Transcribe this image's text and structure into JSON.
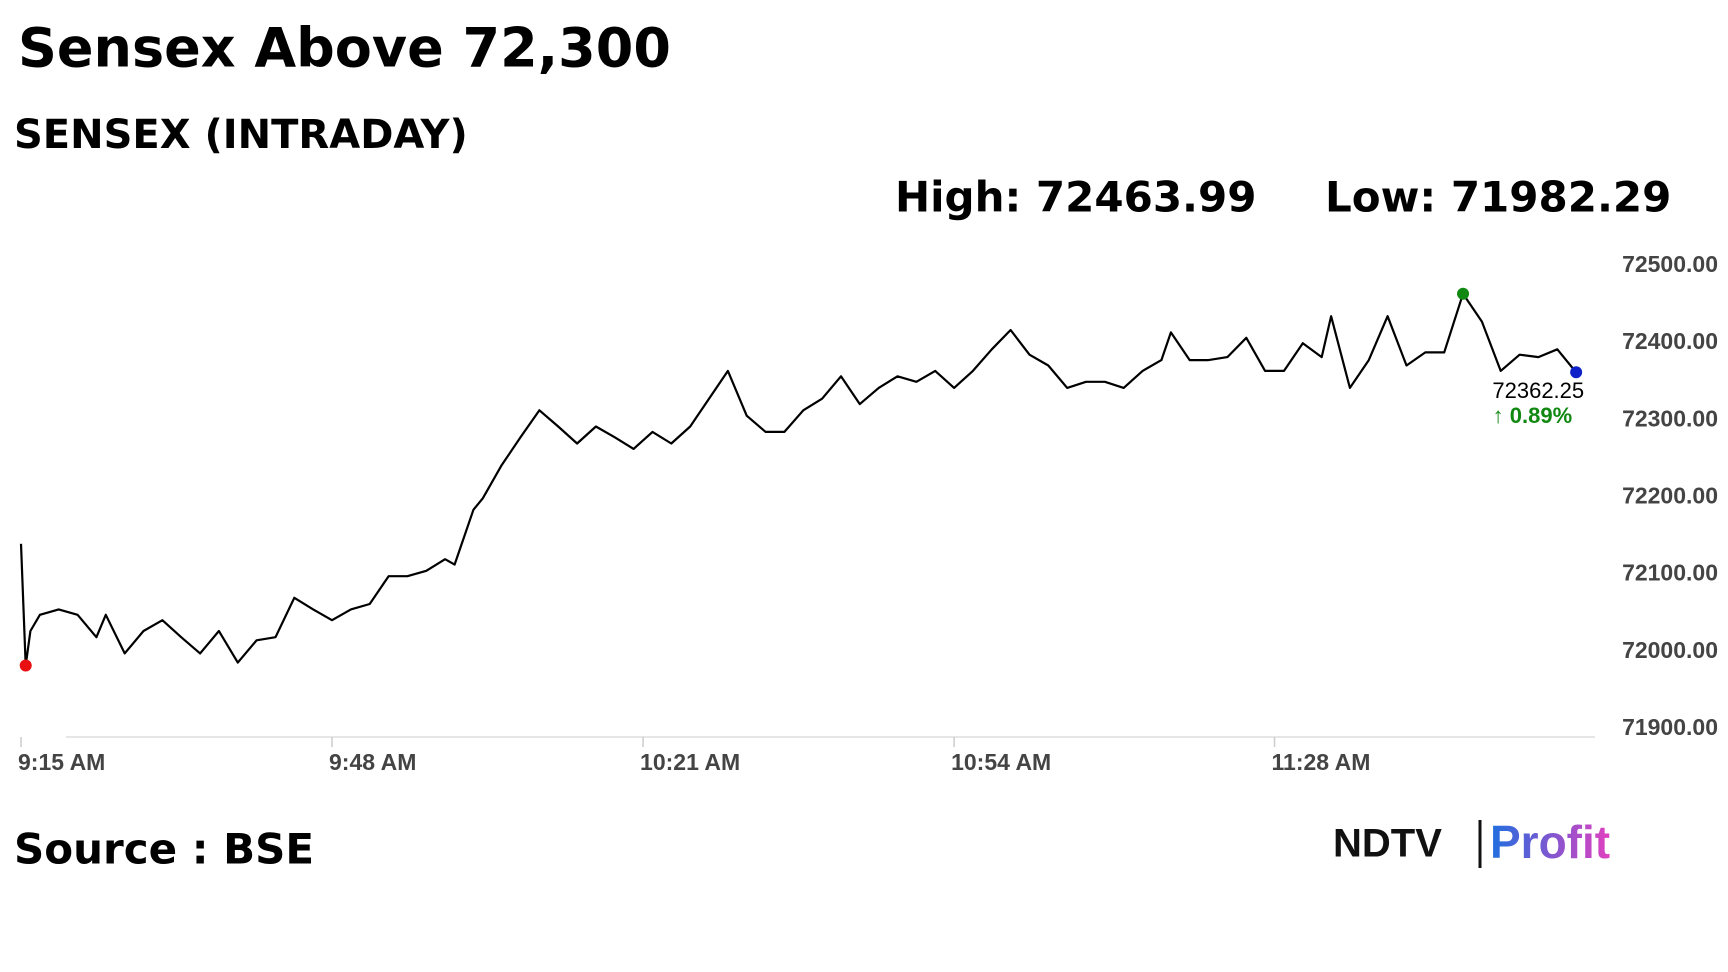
{
  "chart_data": {
    "type": "line",
    "title": "Sensex Above 72,300",
    "subtitle": "SENSEX (INTRADAY)",
    "high_label": "High: 72463.99",
    "low_label": "Low: 71982.29",
    "x": [
      555,
      555.5,
      556,
      557,
      559,
      561,
      563,
      564,
      566,
      568,
      570,
      572,
      574,
      576,
      578,
      580,
      582,
      584,
      586,
      588,
      590,
      592,
      594,
      596,
      598,
      600,
      601,
      603,
      604,
      606,
      608,
      610,
      612,
      614,
      616,
      618,
      620,
      622,
      624,
      626,
      628,
      630,
      632,
      634,
      636,
      638,
      640,
      642,
      644,
      646,
      648,
      650,
      652,
      654,
      656,
      658,
      660,
      662,
      664,
      666,
      668,
      670,
      672,
      674,
      676,
      677,
      679,
      681,
      683,
      685,
      687,
      689,
      691,
      693,
      694,
      696,
      698,
      700,
      702,
      704,
      706,
      708,
      710,
      712,
      714,
      716,
      718,
      720
    ],
    "values": [
      72140,
      71982.29,
      72027,
      72048,
      72055,
      72048,
      72019,
      72048,
      71998,
      72027,
      72041,
      72019,
      71998,
      72027,
      71986,
      72015,
      72019,
      72070,
      72055,
      72041,
      72055,
      72062,
      72098,
      72098,
      72105,
      72120,
      72113,
      72184,
      72199,
      72242,
      72278,
      72313,
      72292,
      72270,
      72292,
      72278,
      72263,
      72285,
      72270,
      72292,
      72328,
      72364,
      72306,
      72285,
      72285,
      72313,
      72328,
      72357,
      72321,
      72342,
      72357,
      72350,
      72364,
      72342,
      72364,
      72392,
      72417,
      72385,
      72371,
      72342,
      72350,
      72350,
      72342,
      72364,
      72378,
      72414,
      72378,
      72378,
      72382,
      72407,
      72364,
      72364,
      72400,
      72382,
      72435,
      72342,
      72378,
      72435,
      72371,
      72388,
      72388,
      72463.99,
      72428,
      72364,
      72385,
      72382,
      72392,
      72362.25
    ],
    "color": "#000000",
    "marker_colors": {
      "low": "#e81010",
      "high": "#118811",
      "last": "#1020c8"
    },
    "last_label": "72362.25",
    "change_label": "↑ 0.89%",
    "change_color": "#118811",
    "xlim": [
      555,
      722
    ],
    "xticks": [
      {
        "value": 555,
        "label": "9:15 AM"
      },
      {
        "value": 588,
        "label": "9:48 AM"
      },
      {
        "value": 621,
        "label": "10:21 AM"
      },
      {
        "value": 654,
        "label": "10:54 AM"
      },
      {
        "value": 688,
        "label": "11:28 AM"
      }
    ],
    "ylim": [
      71900,
      72500
    ],
    "yticks": [
      {
        "value": 71900,
        "label": "71900.00"
      },
      {
        "value": 72000,
        "label": "72000.00"
      },
      {
        "value": 72100,
        "label": "72100.00"
      },
      {
        "value": 72200,
        "label": "72200.00"
      },
      {
        "value": 72300,
        "label": "72300.00"
      },
      {
        "value": 72400,
        "label": "72400.00"
      },
      {
        "value": 72500,
        "label": "72500.00"
      }
    ],
    "source": "Source : BSE",
    "logo_left": "NDTV",
    "logo_right": "Profit"
  }
}
